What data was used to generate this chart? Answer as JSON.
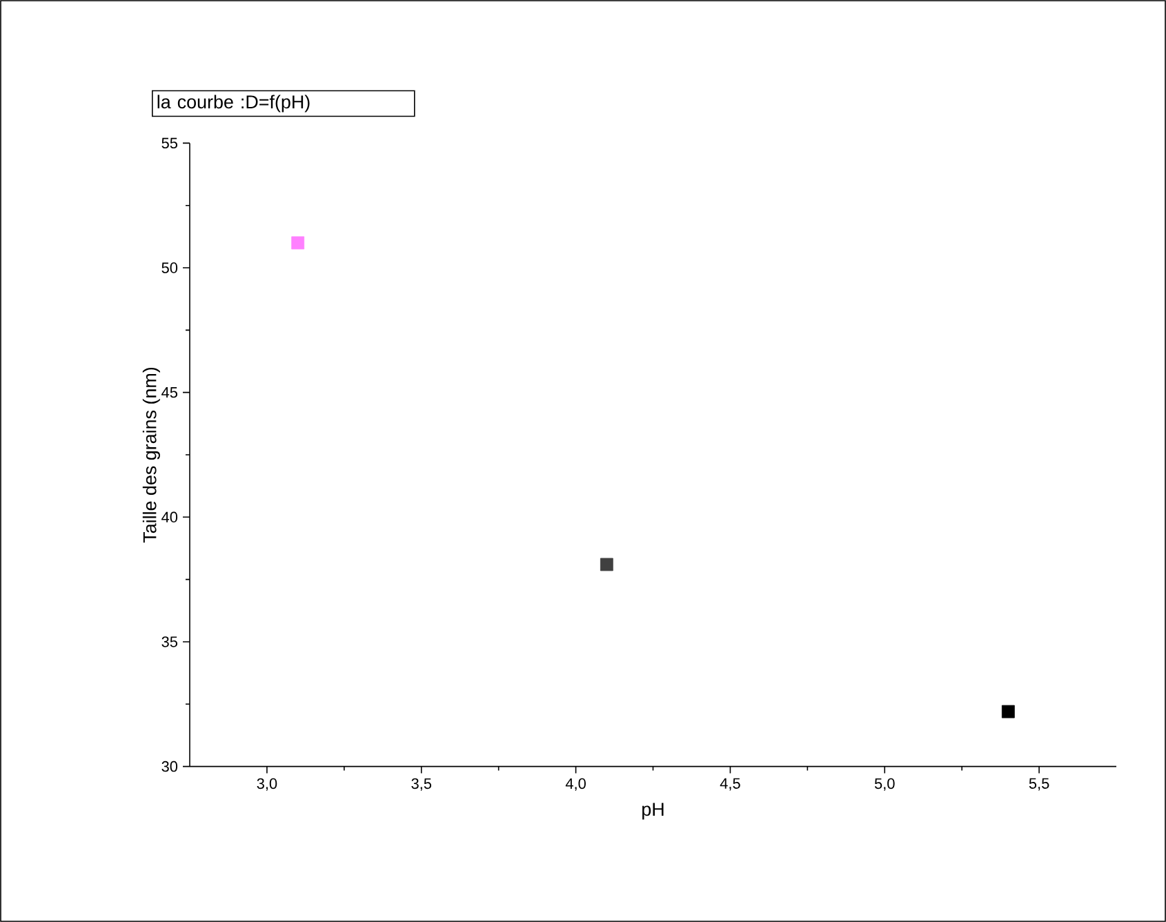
{
  "chart_data": {
    "type": "scatter",
    "title": "la courbe :D=f(pH)",
    "xlabel": "pH",
    "ylabel": "Taille des grains (nm)",
    "x": [
      3.1,
      4.1,
      5.4
    ],
    "values": [
      51.0,
      38.1,
      32.2
    ],
    "colors": [
      "#ff80ff",
      "#404040",
      "#000000"
    ],
    "marker": "square",
    "xlim": [
      2.75,
      5.75
    ],
    "xticks": [
      {
        "value": 3.0,
        "label": "3,0"
      },
      {
        "value": 3.5,
        "label": "3,5"
      },
      {
        "value": 4.0,
        "label": "4,0"
      },
      {
        "value": 4.5,
        "label": "4,5"
      },
      {
        "value": 5.0,
        "label": "5,0"
      },
      {
        "value": 5.5,
        "label": "5,5"
      }
    ],
    "ylim": [
      30,
      55
    ],
    "yticks": [
      30,
      35,
      40,
      45,
      50,
      55
    ]
  }
}
